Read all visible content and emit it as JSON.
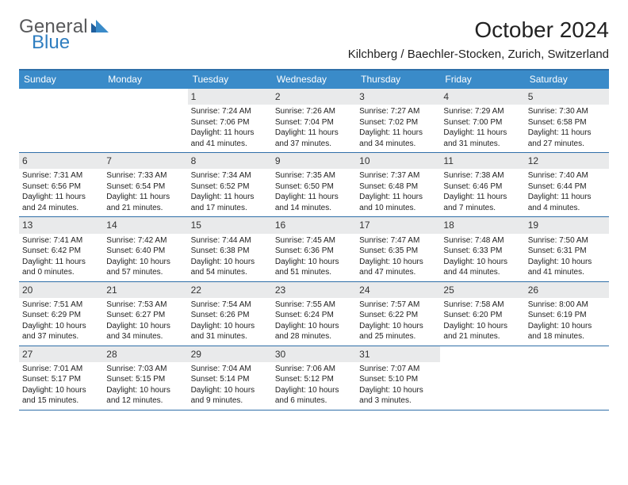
{
  "logo": {
    "text_top": "General",
    "text_bottom": "Blue"
  },
  "title": "October 2024",
  "location": "Kilchberg / Baechler-Stocken, Zurich, Switzerland",
  "colors": {
    "header_bg": "#3a8bc9",
    "border": "#2f6fa8",
    "daynum_bg": "#e9eaeb",
    "logo_gray": "#58595b",
    "logo_blue": "#2f7ec0"
  },
  "weekdays": [
    "Sunday",
    "Monday",
    "Tuesday",
    "Wednesday",
    "Thursday",
    "Friday",
    "Saturday"
  ],
  "weeks": [
    [
      {
        "empty": true
      },
      {
        "empty": true
      },
      {
        "num": "1",
        "sunrise": "Sunrise: 7:24 AM",
        "sunset": "Sunset: 7:06 PM",
        "day1": "Daylight: 11 hours",
        "day2": "and 41 minutes."
      },
      {
        "num": "2",
        "sunrise": "Sunrise: 7:26 AM",
        "sunset": "Sunset: 7:04 PM",
        "day1": "Daylight: 11 hours",
        "day2": "and 37 minutes."
      },
      {
        "num": "3",
        "sunrise": "Sunrise: 7:27 AM",
        "sunset": "Sunset: 7:02 PM",
        "day1": "Daylight: 11 hours",
        "day2": "and 34 minutes."
      },
      {
        "num": "4",
        "sunrise": "Sunrise: 7:29 AM",
        "sunset": "Sunset: 7:00 PM",
        "day1": "Daylight: 11 hours",
        "day2": "and 31 minutes."
      },
      {
        "num": "5",
        "sunrise": "Sunrise: 7:30 AM",
        "sunset": "Sunset: 6:58 PM",
        "day1": "Daylight: 11 hours",
        "day2": "and 27 minutes."
      }
    ],
    [
      {
        "num": "6",
        "sunrise": "Sunrise: 7:31 AM",
        "sunset": "Sunset: 6:56 PM",
        "day1": "Daylight: 11 hours",
        "day2": "and 24 minutes."
      },
      {
        "num": "7",
        "sunrise": "Sunrise: 7:33 AM",
        "sunset": "Sunset: 6:54 PM",
        "day1": "Daylight: 11 hours",
        "day2": "and 21 minutes."
      },
      {
        "num": "8",
        "sunrise": "Sunrise: 7:34 AM",
        "sunset": "Sunset: 6:52 PM",
        "day1": "Daylight: 11 hours",
        "day2": "and 17 minutes."
      },
      {
        "num": "9",
        "sunrise": "Sunrise: 7:35 AM",
        "sunset": "Sunset: 6:50 PM",
        "day1": "Daylight: 11 hours",
        "day2": "and 14 minutes."
      },
      {
        "num": "10",
        "sunrise": "Sunrise: 7:37 AM",
        "sunset": "Sunset: 6:48 PM",
        "day1": "Daylight: 11 hours",
        "day2": "and 10 minutes."
      },
      {
        "num": "11",
        "sunrise": "Sunrise: 7:38 AM",
        "sunset": "Sunset: 6:46 PM",
        "day1": "Daylight: 11 hours",
        "day2": "and 7 minutes."
      },
      {
        "num": "12",
        "sunrise": "Sunrise: 7:40 AM",
        "sunset": "Sunset: 6:44 PM",
        "day1": "Daylight: 11 hours",
        "day2": "and 4 minutes."
      }
    ],
    [
      {
        "num": "13",
        "sunrise": "Sunrise: 7:41 AM",
        "sunset": "Sunset: 6:42 PM",
        "day1": "Daylight: 11 hours",
        "day2": "and 0 minutes."
      },
      {
        "num": "14",
        "sunrise": "Sunrise: 7:42 AM",
        "sunset": "Sunset: 6:40 PM",
        "day1": "Daylight: 10 hours",
        "day2": "and 57 minutes."
      },
      {
        "num": "15",
        "sunrise": "Sunrise: 7:44 AM",
        "sunset": "Sunset: 6:38 PM",
        "day1": "Daylight: 10 hours",
        "day2": "and 54 minutes."
      },
      {
        "num": "16",
        "sunrise": "Sunrise: 7:45 AM",
        "sunset": "Sunset: 6:36 PM",
        "day1": "Daylight: 10 hours",
        "day2": "and 51 minutes."
      },
      {
        "num": "17",
        "sunrise": "Sunrise: 7:47 AM",
        "sunset": "Sunset: 6:35 PM",
        "day1": "Daylight: 10 hours",
        "day2": "and 47 minutes."
      },
      {
        "num": "18",
        "sunrise": "Sunrise: 7:48 AM",
        "sunset": "Sunset: 6:33 PM",
        "day1": "Daylight: 10 hours",
        "day2": "and 44 minutes."
      },
      {
        "num": "19",
        "sunrise": "Sunrise: 7:50 AM",
        "sunset": "Sunset: 6:31 PM",
        "day1": "Daylight: 10 hours",
        "day2": "and 41 minutes."
      }
    ],
    [
      {
        "num": "20",
        "sunrise": "Sunrise: 7:51 AM",
        "sunset": "Sunset: 6:29 PM",
        "day1": "Daylight: 10 hours",
        "day2": "and 37 minutes."
      },
      {
        "num": "21",
        "sunrise": "Sunrise: 7:53 AM",
        "sunset": "Sunset: 6:27 PM",
        "day1": "Daylight: 10 hours",
        "day2": "and 34 minutes."
      },
      {
        "num": "22",
        "sunrise": "Sunrise: 7:54 AM",
        "sunset": "Sunset: 6:26 PM",
        "day1": "Daylight: 10 hours",
        "day2": "and 31 minutes."
      },
      {
        "num": "23",
        "sunrise": "Sunrise: 7:55 AM",
        "sunset": "Sunset: 6:24 PM",
        "day1": "Daylight: 10 hours",
        "day2": "and 28 minutes."
      },
      {
        "num": "24",
        "sunrise": "Sunrise: 7:57 AM",
        "sunset": "Sunset: 6:22 PM",
        "day1": "Daylight: 10 hours",
        "day2": "and 25 minutes."
      },
      {
        "num": "25",
        "sunrise": "Sunrise: 7:58 AM",
        "sunset": "Sunset: 6:20 PM",
        "day1": "Daylight: 10 hours",
        "day2": "and 21 minutes."
      },
      {
        "num": "26",
        "sunrise": "Sunrise: 8:00 AM",
        "sunset": "Sunset: 6:19 PM",
        "day1": "Daylight: 10 hours",
        "day2": "and 18 minutes."
      }
    ],
    [
      {
        "num": "27",
        "sunrise": "Sunrise: 7:01 AM",
        "sunset": "Sunset: 5:17 PM",
        "day1": "Daylight: 10 hours",
        "day2": "and 15 minutes."
      },
      {
        "num": "28",
        "sunrise": "Sunrise: 7:03 AM",
        "sunset": "Sunset: 5:15 PM",
        "day1": "Daylight: 10 hours",
        "day2": "and 12 minutes."
      },
      {
        "num": "29",
        "sunrise": "Sunrise: 7:04 AM",
        "sunset": "Sunset: 5:14 PM",
        "day1": "Daylight: 10 hours",
        "day2": "and 9 minutes."
      },
      {
        "num": "30",
        "sunrise": "Sunrise: 7:06 AM",
        "sunset": "Sunset: 5:12 PM",
        "day1": "Daylight: 10 hours",
        "day2": "and 6 minutes."
      },
      {
        "num": "31",
        "sunrise": "Sunrise: 7:07 AM",
        "sunset": "Sunset: 5:10 PM",
        "day1": "Daylight: 10 hours",
        "day2": "and 3 minutes."
      },
      {
        "empty": true
      },
      {
        "empty": true
      }
    ]
  ]
}
